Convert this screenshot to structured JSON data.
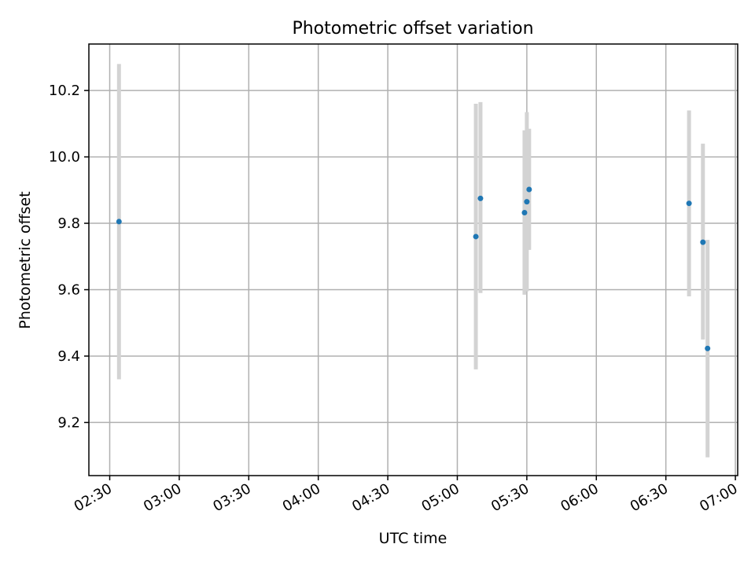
{
  "chart_data": {
    "type": "scatter",
    "title": "Photometric offset variation",
    "xlabel": "UTC time",
    "ylabel": "Photometric offset",
    "x_tick_labels": [
      "02:30",
      "03:00",
      "03:30",
      "04:00",
      "04:30",
      "05:00",
      "05:30",
      "06:00",
      "06:30",
      "07:00"
    ],
    "y_tick_labels": [
      "9.2",
      "9.4",
      "9.6",
      "9.8",
      "10.0",
      "10.2"
    ],
    "y_ticks": [
      9.2,
      9.4,
      9.6,
      9.8,
      10.0,
      10.2
    ],
    "xlim": [
      "02:21",
      "07:01"
    ],
    "ylim": [
      9.04,
      10.34
    ],
    "grid": true,
    "colors": {
      "marker": "#1f77b4",
      "errorbar": "#d3d3d3",
      "grid": "#b0b0b0"
    },
    "points": [
      {
        "x": "02:34",
        "y": 9.805,
        "ylow": 9.33,
        "yhigh": 10.28
      },
      {
        "x": "05:08",
        "y": 9.76,
        "ylow": 9.36,
        "yhigh": 10.16
      },
      {
        "x": "05:10",
        "y": 9.875,
        "ylow": 9.59,
        "yhigh": 10.165
      },
      {
        "x": "05:29",
        "y": 9.832,
        "ylow": 9.585,
        "yhigh": 10.08
      },
      {
        "x": "05:30",
        "y": 9.865,
        "ylow": 9.595,
        "yhigh": 10.135
      },
      {
        "x": "05:31",
        "y": 9.902,
        "ylow": 9.72,
        "yhigh": 10.085
      },
      {
        "x": "06:40",
        "y": 9.86,
        "ylow": 9.58,
        "yhigh": 10.14
      },
      {
        "x": "06:46",
        "y": 9.743,
        "ylow": 9.45,
        "yhigh": 10.04
      },
      {
        "x": "06:48",
        "y": 9.423,
        "ylow": 9.095,
        "yhigh": 9.75
      }
    ]
  }
}
